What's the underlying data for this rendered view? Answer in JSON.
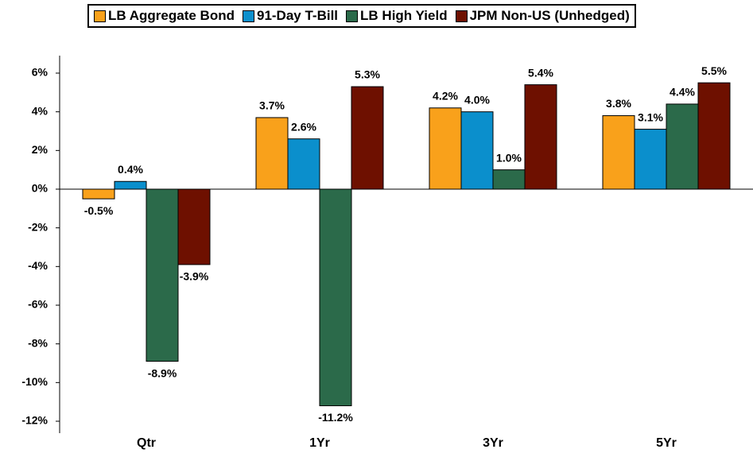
{
  "chart_data": {
    "type": "bar",
    "categories": [
      "Qtr",
      "1Yr",
      "3Yr",
      "5Yr"
    ],
    "series": [
      {
        "name": "LB Aggregate Bond",
        "color": "#f9a11b",
        "values": [
          -0.5,
          3.7,
          4.2,
          3.8
        ],
        "value_labels": [
          "-0.5%",
          "3.7%",
          "4.2%",
          "3.8%"
        ]
      },
      {
        "name": "91-Day T-Bill",
        "color": "#0b8fcc",
        "values": [
          0.4,
          2.6,
          4.0,
          3.1
        ],
        "value_labels": [
          "0.4%",
          "2.6%",
          "4.0%",
          "3.1%"
        ]
      },
      {
        "name": "LB High Yield",
        "color": "#2b6a4a",
        "values": [
          -8.9,
          -11.2,
          1.0,
          4.4
        ],
        "value_labels": [
          "-8.9%",
          "-11.2%",
          "1.0%",
          "4.4%"
        ]
      },
      {
        "name": "JPM Non-US (Unhedged)",
        "color": "#6e1000",
        "values": [
          -3.9,
          5.3,
          5.4,
          5.5
        ],
        "value_labels": [
          "-3.9%",
          "5.3%",
          "5.4%",
          "5.5%"
        ]
      }
    ],
    "ylim": [
      -12,
      6
    ],
    "yticks": [
      {
        "value": -12,
        "label": "-12%"
      },
      {
        "value": -10,
        "label": "-10%"
      },
      {
        "value": -8,
        "label": "-8%"
      },
      {
        "value": -6,
        "label": "-6%"
      },
      {
        "value": -4,
        "label": "-4%"
      },
      {
        "value": -2,
        "label": "-2%"
      },
      {
        "value": 0,
        "label": "0%"
      },
      {
        "value": 2,
        "label": "2%"
      },
      {
        "value": 4,
        "label": "4%"
      },
      {
        "value": 6,
        "label": "6%"
      }
    ],
    "legend": "top"
  }
}
